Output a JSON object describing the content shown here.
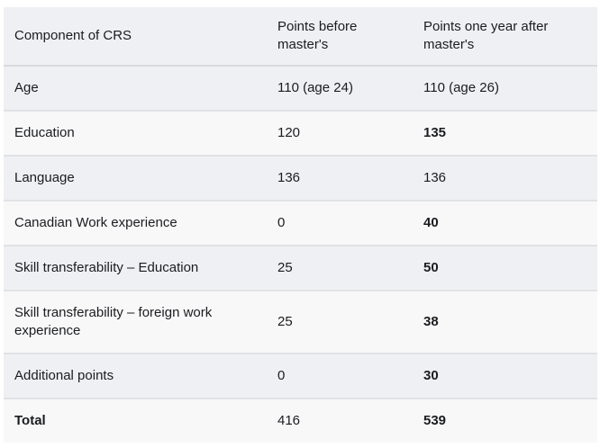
{
  "table": {
    "name": "crs-points-comparison",
    "columns": [
      {
        "key": "component",
        "label": "Component of CRS"
      },
      {
        "key": "before",
        "label": "Points before master's"
      },
      {
        "key": "after",
        "label": "Points one year after master's"
      }
    ],
    "rows": [
      {
        "component": "Age",
        "component_bold": false,
        "before": "110 (age 24)",
        "after": "110 (age 26)",
        "after_bold": false
      },
      {
        "component": "Education",
        "component_bold": false,
        "before": "120",
        "after": "135",
        "after_bold": true
      },
      {
        "component": "Language",
        "component_bold": false,
        "before": "136",
        "after": "136",
        "after_bold": false
      },
      {
        "component": "Canadian Work experience",
        "component_bold": false,
        "before": "0",
        "after": "40",
        "after_bold": true
      },
      {
        "component": "Skill transferability – Education",
        "component_bold": false,
        "before": "25",
        "after": "50",
        "after_bold": true
      },
      {
        "component": "Skill transferability – foreign work experience",
        "component_bold": false,
        "before": "25",
        "after": "38",
        "after_bold": true
      },
      {
        "component": "Additional points",
        "component_bold": false,
        "before": "0",
        "after": "30",
        "after_bold": true
      },
      {
        "component": "Total",
        "component_bold": true,
        "before": "416",
        "after": "539",
        "after_bold": true
      }
    ],
    "colors": {
      "stripe_gray": "#eef0f3",
      "stripe_light": "#f8f8f9",
      "row_border": "#e0e2e5",
      "header_border": "#d8dadd",
      "text": "#1b1c1f",
      "page_background": "#ffffff"
    }
  }
}
